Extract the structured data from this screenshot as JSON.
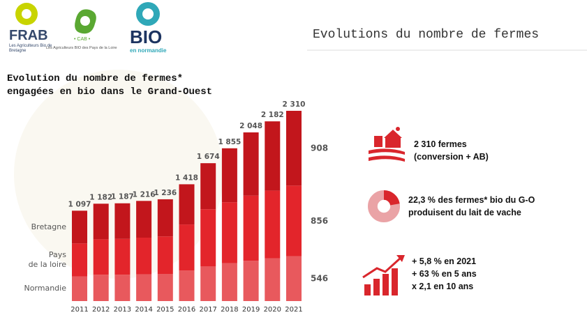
{
  "header": {
    "title": "Evolutions du nombre de fermes"
  },
  "logos": [
    {
      "name": "FRAB",
      "tagline": "Les Agriculteurs Bio de Bretagne"
    },
    {
      "name": "• CAB •",
      "tagline": "Les Agriculteurs BIO des Pays de la Loire"
    },
    {
      "name": "BIO",
      "tagline": "en normandie"
    }
  ],
  "chart_data": {
    "type": "stacked-bar",
    "title": "Evolution du nombre de fermes* engagées en bio dans le Grand-Ouest",
    "categories": [
      "2011",
      "2012",
      "2013",
      "2014",
      "2015",
      "2016",
      "2017",
      "2018",
      "2019",
      "2020",
      "2021"
    ],
    "series": [
      {
        "name": "Normandie",
        "color": "#e8595d",
        "values": [
          300,
          320,
          320,
          325,
          330,
          370,
          420,
          460,
          490,
          520,
          546
        ]
      },
      {
        "name": "Pays\nde la loire",
        "color": "#e3252b",
        "values": [
          400,
          430,
          435,
          445,
          455,
          560,
          695,
          740,
          790,
          820,
          856
        ]
      },
      {
        "name": "Bretagne",
        "color": "#c2161c",
        "values": [
          397,
          432,
          432,
          446,
          451,
          488,
          559,
          655,
          768,
          842,
          908
        ]
      }
    ],
    "totals": {
      "values": [
        1097,
        1182,
        1187,
        1216,
        1236,
        1418,
        1674,
        1855,
        2048,
        2182,
        2310
      ],
      "value_labels": [
        "1 097",
        "1 182",
        "1 187",
        "1 216",
        "1 236",
        "1 418",
        "1 674",
        "1 855",
        "2 048",
        "2 182",
        "2 310"
      ]
    }
  },
  "stats": [
    {
      "lines": [
        "2 310 fermes",
        "(conversion + AB)"
      ]
    },
    {
      "value": 22.3,
      "lines": [
        "22,3 % des fermes* bio du G-O",
        "produisent du lait de vache"
      ]
    },
    {
      "lines": [
        "+ 5,8 % en 2021",
        "+ 63 % en 5 ans",
        "x 2,1 en 10 ans"
      ]
    }
  ]
}
